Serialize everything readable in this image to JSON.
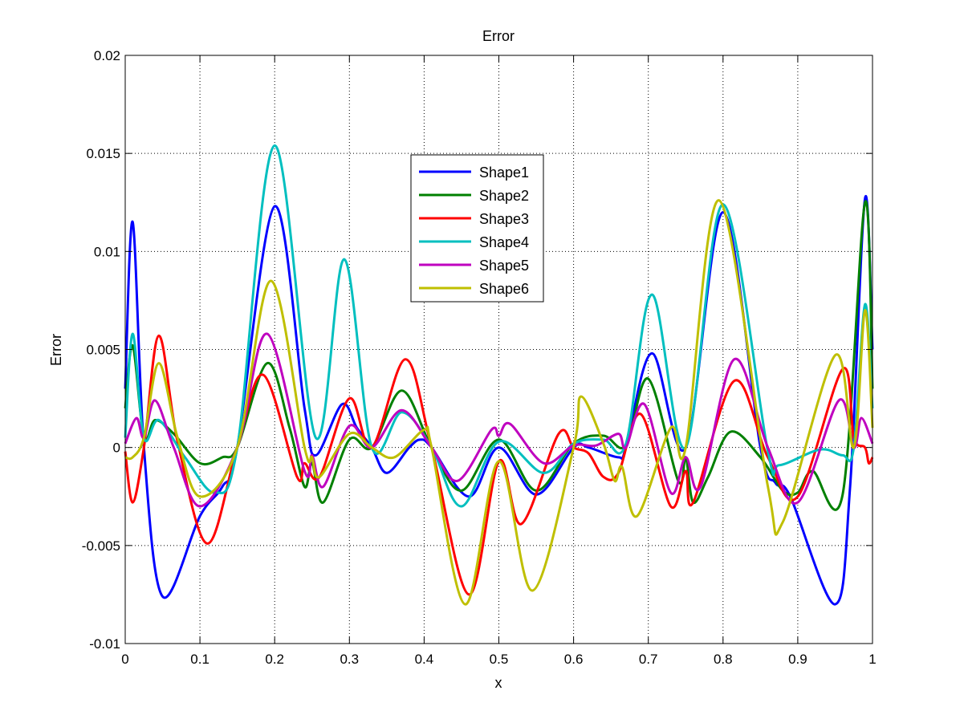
{
  "chart_data": {
    "type": "line",
    "title": "Error",
    "xlabel": "x",
    "ylabel": "Error",
    "xlim": [
      0,
      1
    ],
    "ylim": [
      -0.01,
      0.02
    ],
    "xticks": [
      "0",
      "0.1",
      "0.2",
      "0.3",
      "0.4",
      "0.5",
      "0.6",
      "0.7",
      "0.8",
      "0.9",
      "1"
    ],
    "yticks": [
      "-0.01",
      "-0.005",
      "0",
      "0.005",
      "0.01",
      "0.015",
      "0.02"
    ],
    "grid": true,
    "legend_position": "upper-center",
    "series": [
      {
        "name": "Shape1",
        "color": "#0000ff",
        "points": [
          [
            0,
            0.003
          ],
          [
            0.01,
            0.0115
          ],
          [
            0.025,
            0
          ],
          [
            0.05,
            -0.0076
          ],
          [
            0.1,
            -0.0035
          ],
          [
            0.13,
            -0.002
          ],
          [
            0.15,
            0
          ],
          [
            0.2,
            0.0123
          ],
          [
            0.24,
            0.002
          ],
          [
            0.255,
            -0.0004
          ],
          [
            0.29,
            0.0022
          ],
          [
            0.31,
            0.001
          ],
          [
            0.33,
            0
          ],
          [
            0.35,
            -0.0013
          ],
          [
            0.38,
            0
          ],
          [
            0.395,
            0.0004
          ],
          [
            0.41,
            0
          ],
          [
            0.46,
            -0.0025
          ],
          [
            0.5,
            0
          ],
          [
            0.55,
            -0.0024
          ],
          [
            0.6,
            0
          ],
          [
            0.62,
            0
          ],
          [
            0.66,
            -0.0005
          ],
          [
            0.67,
            0
          ],
          [
            0.705,
            0.0048
          ],
          [
            0.75,
            0
          ],
          [
            0.8,
            0.012
          ],
          [
            0.85,
            0
          ],
          [
            0.87,
            -0.0018
          ],
          [
            0.89,
            -0.0025
          ],
          [
            0.95,
            -0.008
          ],
          [
            0.97,
            -0.002
          ],
          [
            0.99,
            0.0127
          ],
          [
            1,
            0.005
          ]
        ]
      },
      {
        "name": "Shape2",
        "color": "#008000",
        "points": [
          [
            0,
            0.002
          ],
          [
            0.01,
            0.0052
          ],
          [
            0.025,
            0.0005
          ],
          [
            0.04,
            0.0014
          ],
          [
            0.065,
            0.0007
          ],
          [
            0.1,
            -0.0008
          ],
          [
            0.13,
            -0.0005
          ],
          [
            0.15,
            0
          ],
          [
            0.19,
            0.0043
          ],
          [
            0.22,
            0.001
          ],
          [
            0.24,
            -0.002
          ],
          [
            0.25,
            -0.0008
          ],
          [
            0.265,
            -0.0028
          ],
          [
            0.3,
            0.0004
          ],
          [
            0.33,
            0
          ],
          [
            0.37,
            0.0029
          ],
          [
            0.41,
            0
          ],
          [
            0.45,
            -0.0022
          ],
          [
            0.5,
            0.0004
          ],
          [
            0.55,
            -0.0022
          ],
          [
            0.6,
            0.0002
          ],
          [
            0.64,
            0.0006
          ],
          [
            0.67,
            0.0001
          ],
          [
            0.7,
            0.0035
          ],
          [
            0.74,
            -0.0017
          ],
          [
            0.75,
            -0.0005
          ],
          [
            0.76,
            -0.0028
          ],
          [
            0.78,
            -0.0015
          ],
          [
            0.81,
            0.0008
          ],
          [
            0.85,
            -0.0005
          ],
          [
            0.88,
            -0.0022
          ],
          [
            0.9,
            -0.0023
          ],
          [
            0.92,
            -0.0012
          ],
          [
            0.96,
            -0.0024
          ],
          [
            0.99,
            0.0125
          ],
          [
            1,
            0.003
          ]
        ]
      },
      {
        "name": "Shape3",
        "color": "#ff0000",
        "points": [
          [
            0,
            -0.0002
          ],
          [
            0.01,
            -0.0028
          ],
          [
            0.025,
            0
          ],
          [
            0.045,
            0.0057
          ],
          [
            0.07,
            0.0003
          ],
          [
            0.11,
            -0.0049
          ],
          [
            0.15,
            0
          ],
          [
            0.185,
            0.0037
          ],
          [
            0.23,
            -0.0015
          ],
          [
            0.24,
            -0.0008
          ],
          [
            0.26,
            -0.0015
          ],
          [
            0.3,
            0.0025
          ],
          [
            0.33,
            0
          ],
          [
            0.375,
            0.0045
          ],
          [
            0.41,
            0
          ],
          [
            0.46,
            -0.0075
          ],
          [
            0.5,
            -0.0007
          ],
          [
            0.53,
            -0.0039
          ],
          [
            0.58,
            0.0007
          ],
          [
            0.6,
            0
          ],
          [
            0.62,
            -0.0003
          ],
          [
            0.64,
            -0.0015
          ],
          [
            0.66,
            -0.0013
          ],
          [
            0.69,
            0.0017
          ],
          [
            0.73,
            -0.003
          ],
          [
            0.75,
            -0.0012
          ],
          [
            0.76,
            -0.0028
          ],
          [
            0.815,
            0.0034
          ],
          [
            0.86,
            -0.0005
          ],
          [
            0.9,
            -0.0025
          ],
          [
            0.96,
            0.004
          ],
          [
            0.975,
            0.0005
          ],
          [
            0.99,
            0
          ],
          [
            0.995,
            -0.0008
          ],
          [
            1,
            -0.0005
          ]
        ]
      },
      {
        "name": "Shape4",
        "color": "#00bfbf",
        "points": [
          [
            0,
            0.0005
          ],
          [
            0.01,
            0.0058
          ],
          [
            0.025,
            0.0005
          ],
          [
            0.045,
            0.0014
          ],
          [
            0.08,
            -0.0005
          ],
          [
            0.12,
            -0.0023
          ],
          [
            0.15,
            0
          ],
          [
            0.2,
            0.0154
          ],
          [
            0.255,
            0.0005
          ],
          [
            0.293,
            0.0096
          ],
          [
            0.33,
            0
          ],
          [
            0.37,
            0.0018
          ],
          [
            0.41,
            0
          ],
          [
            0.45,
            -0.003
          ],
          [
            0.5,
            0.0003
          ],
          [
            0.56,
            -0.0013
          ],
          [
            0.6,
            0.0002
          ],
          [
            0.64,
            0.0004
          ],
          [
            0.67,
            0.0002
          ],
          [
            0.705,
            0.0078
          ],
          [
            0.75,
            0
          ],
          [
            0.8,
            0.0124
          ],
          [
            0.86,
            -0.0002
          ],
          [
            0.875,
            -0.0009
          ],
          [
            0.93,
            -0.0001
          ],
          [
            0.96,
            -0.0004
          ],
          [
            0.975,
            0
          ],
          [
            0.99,
            0.0073
          ],
          [
            1,
            0.002
          ]
        ]
      },
      {
        "name": "Shape5",
        "color": "#bf00bf",
        "points": [
          [
            0,
            0.0002
          ],
          [
            0.015,
            0.0015
          ],
          [
            0.025,
            0.0005
          ],
          [
            0.04,
            0.0024
          ],
          [
            0.065,
            0
          ],
          [
            0.1,
            -0.003
          ],
          [
            0.15,
            0
          ],
          [
            0.19,
            0.0058
          ],
          [
            0.24,
            -0.0012
          ],
          [
            0.25,
            -0.0004
          ],
          [
            0.265,
            -0.002
          ],
          [
            0.3,
            0.0011
          ],
          [
            0.33,
            0
          ],
          [
            0.37,
            0.0019
          ],
          [
            0.41,
            0
          ],
          [
            0.445,
            -0.0017
          ],
          [
            0.49,
            0.0009
          ],
          [
            0.5,
            0.0006
          ],
          [
            0.515,
            0.0012
          ],
          [
            0.56,
            -0.0008
          ],
          [
            0.6,
            0.0001
          ],
          [
            0.63,
            0.0001
          ],
          [
            0.66,
            0.0007
          ],
          [
            0.67,
            0
          ],
          [
            0.695,
            0.0022
          ],
          [
            0.73,
            -0.0023
          ],
          [
            0.75,
            -0.0005
          ],
          [
            0.77,
            -0.002
          ],
          [
            0.815,
            0.0045
          ],
          [
            0.86,
            0
          ],
          [
            0.9,
            -0.0028
          ],
          [
            0.955,
            0.0024
          ],
          [
            0.975,
            0
          ],
          [
            0.985,
            0.0015
          ],
          [
            1,
            0.0002
          ]
        ]
      },
      {
        "name": "Shape6",
        "color": "#bfbf00",
        "points": [
          [
            0,
            -0.0005
          ],
          [
            0.01,
            -0.0005
          ],
          [
            0.025,
            0.0005
          ],
          [
            0.045,
            0.0043
          ],
          [
            0.07,
            0.0005
          ],
          [
            0.1,
            -0.0025
          ],
          [
            0.15,
            0
          ],
          [
            0.195,
            0.0085
          ],
          [
            0.24,
            0
          ],
          [
            0.25,
            -0.0005
          ],
          [
            0.26,
            -0.0015
          ],
          [
            0.3,
            0.0007
          ],
          [
            0.33,
            0
          ],
          [
            0.36,
            -0.0005
          ],
          [
            0.4,
            0.0009
          ],
          [
            0.41,
            0
          ],
          [
            0.455,
            -0.008
          ],
          [
            0.5,
            -0.0007
          ],
          [
            0.545,
            -0.0073
          ],
          [
            0.6,
            0
          ],
          [
            0.61,
            0.0026
          ],
          [
            0.64,
            0.0002
          ],
          [
            0.655,
            -0.0017
          ],
          [
            0.665,
            -0.001
          ],
          [
            0.685,
            -0.0035
          ],
          [
            0.73,
            0.001
          ],
          [
            0.75,
            0
          ],
          [
            0.795,
            0.0126
          ],
          [
            0.86,
            -0.002
          ],
          [
            0.88,
            -0.0038
          ],
          [
            0.95,
            0.0047
          ],
          [
            0.975,
            0
          ],
          [
            0.99,
            0.007
          ],
          [
            1,
            0.001
          ]
        ]
      }
    ]
  }
}
